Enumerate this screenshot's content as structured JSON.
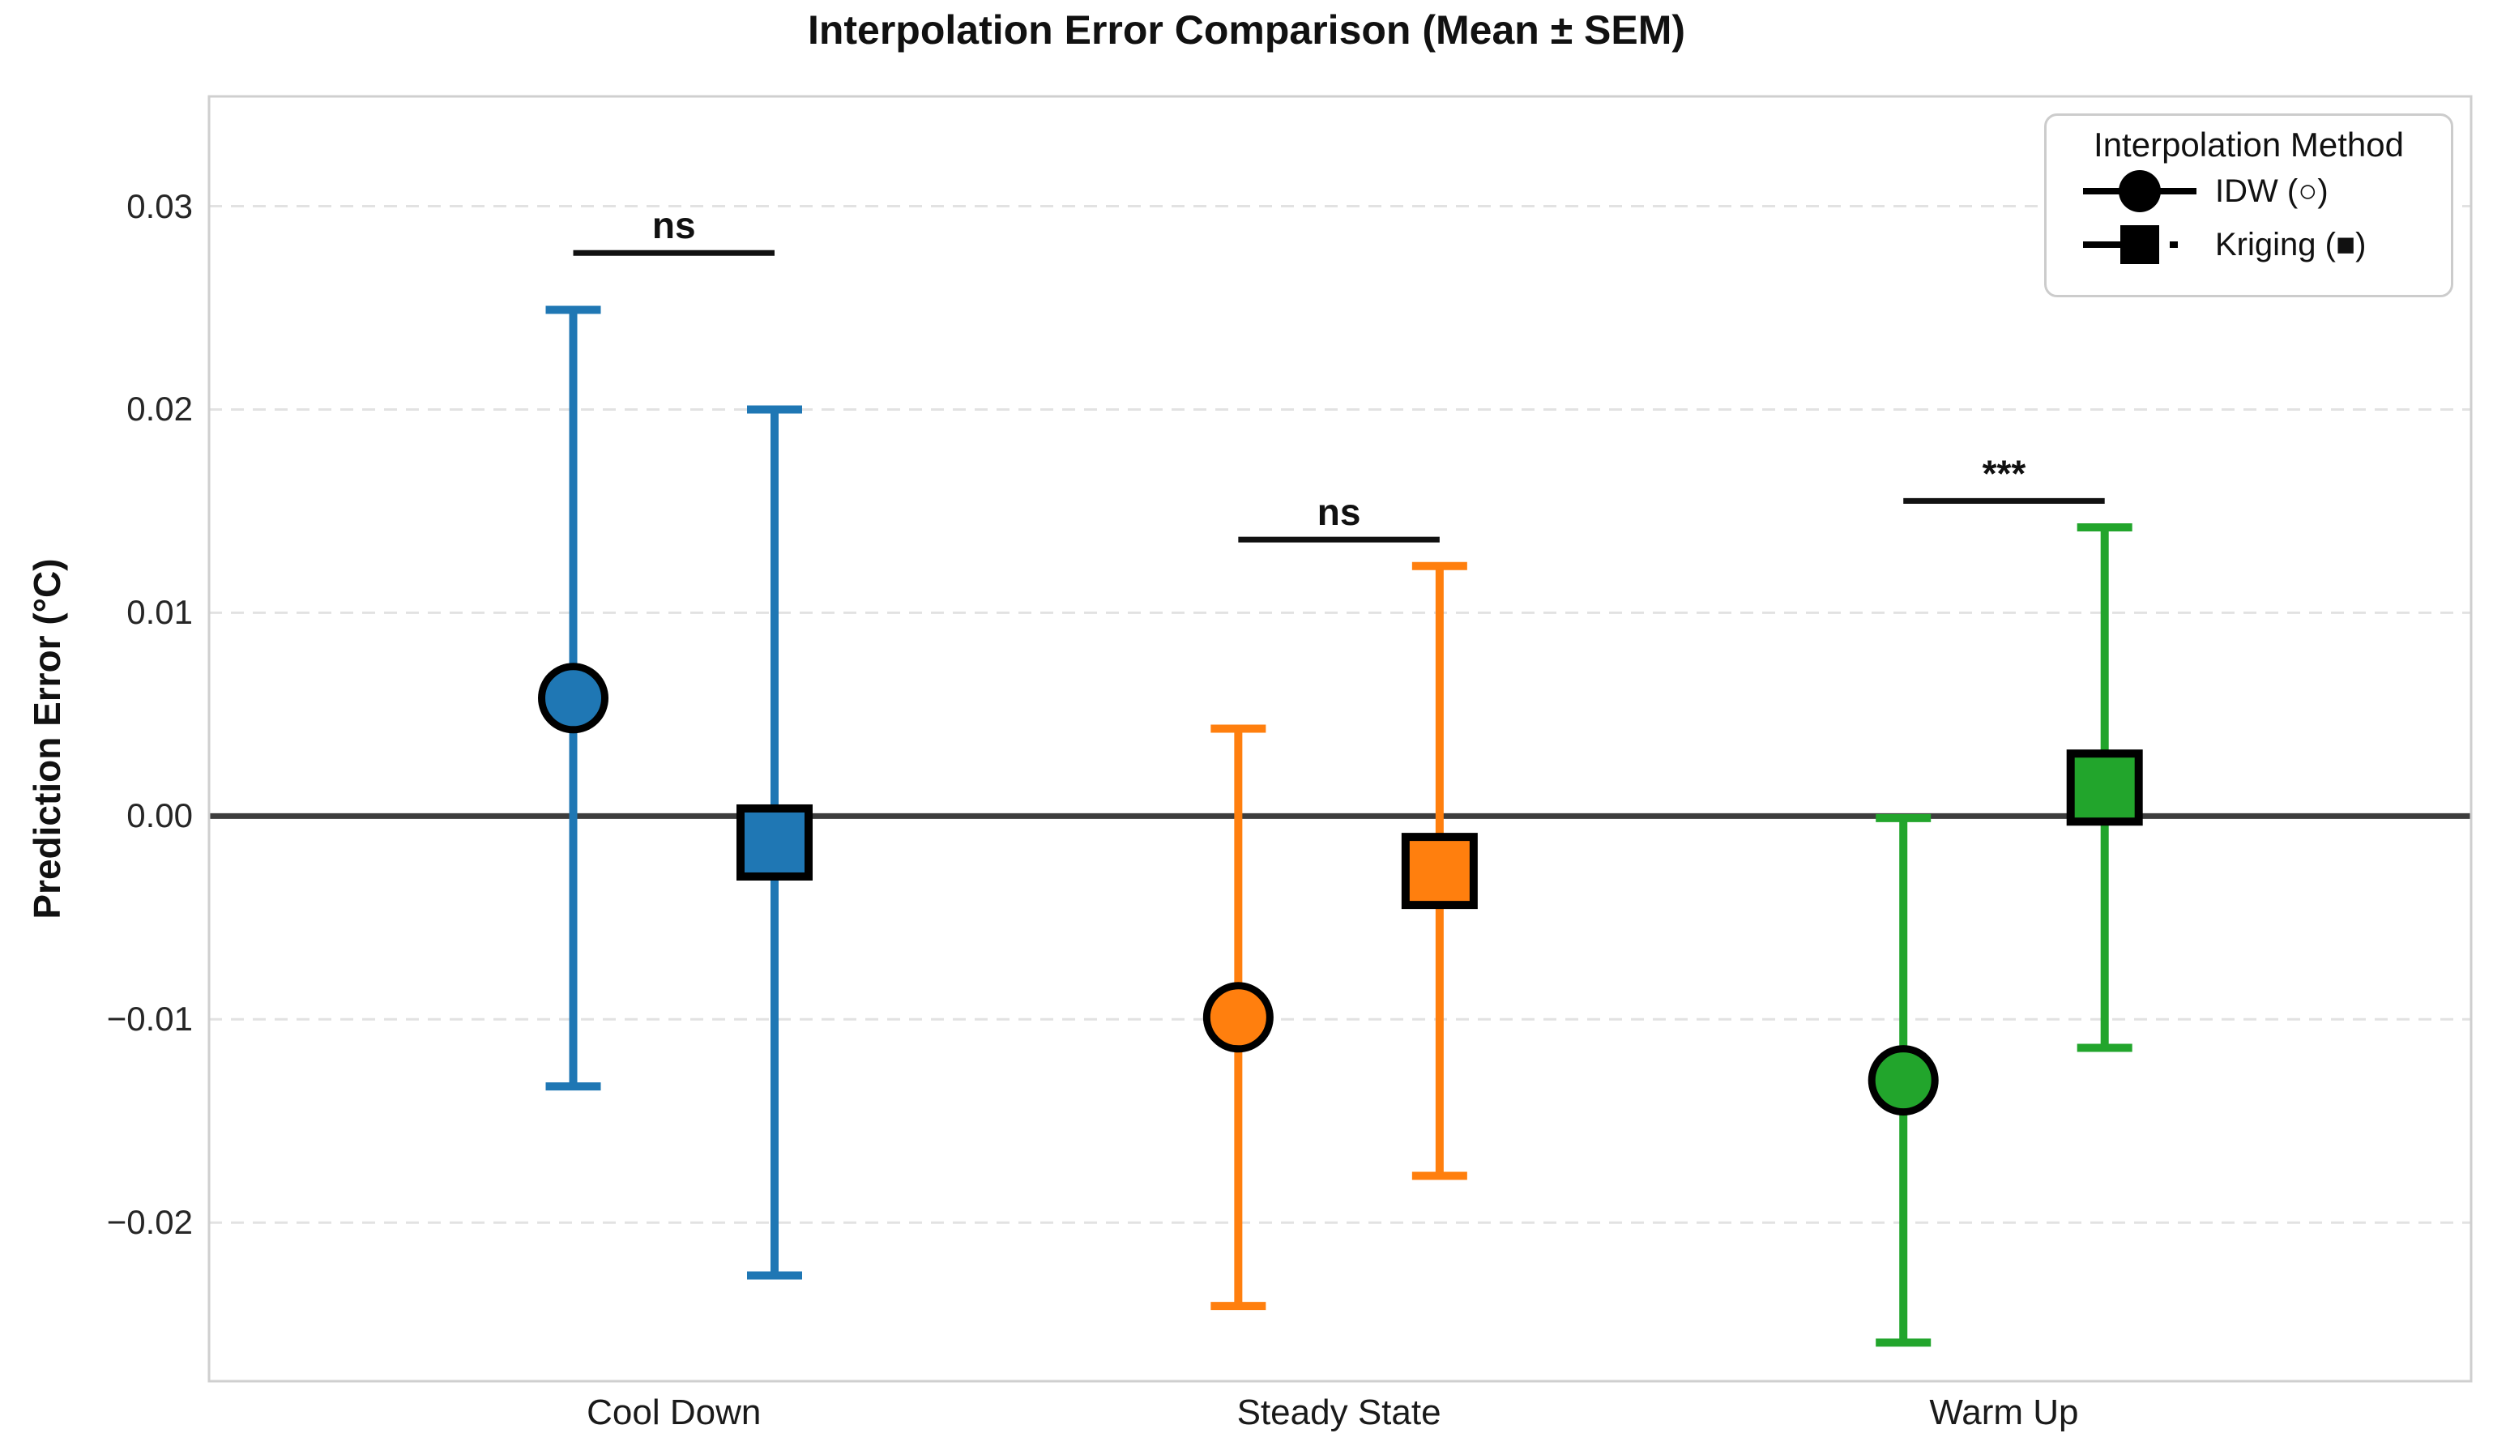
{
  "page": {
    "title": "Interpolation Error Comparison (Mean ± SEM)"
  },
  "chart_data": {
    "type": "errorbar",
    "title": "Interpolation Error Comparison (Mean ± SEM)",
    "xlabel": "",
    "ylabel": "Prediction Error (°C)",
    "categories": [
      "Cool Down",
      "Steady State",
      "Warm Up"
    ],
    "category_colors": [
      "#1f77b4",
      "#ff7f0e",
      "#22a52c"
    ],
    "ytick_labels": [
      "0.03",
      "0.02",
      "0.01",
      "0.00",
      "−0.01",
      "−0.02"
    ],
    "ytick_values": [
      0.03,
      0.02,
      0.01,
      0.0,
      -0.01,
      -0.02
    ],
    "ylim": [
      -0.0278,
      0.0354
    ],
    "grid": "horizontal-dashed",
    "zero_line_y": 0.0,
    "series": [
      {
        "name": "IDW (○)",
        "marker": "circle",
        "means": [
          0.0058,
          -0.0099,
          -0.013
        ],
        "sems": [
          0.0191,
          0.0142,
          0.0129
        ]
      },
      {
        "name": "Kriging (■)",
        "marker": "square",
        "means": [
          -0.0013,
          -0.0027,
          0.0014
        ],
        "sems": [
          0.0213,
          0.015,
          0.0128
        ]
      }
    ],
    "significance": [
      {
        "category": "Cool Down",
        "label": "ns",
        "line_y": 0.0277
      },
      {
        "category": "Steady State",
        "label": "ns",
        "line_y": 0.0136
      },
      {
        "category": "Warm Up",
        "label": "***",
        "line_y": 0.0155
      }
    ],
    "legend": {
      "title": "Interpolation Method",
      "position": "upper right",
      "entries": [
        {
          "label": "IDW (○)",
          "marker": "circle",
          "line": "solid"
        },
        {
          "label": "Kriging (■)",
          "marker": "square",
          "line": "dash-dot"
        }
      ]
    },
    "marker_edge_color": "#000000",
    "line_color_zero": "#3d3d3d",
    "grid_color": "#e2e2e2"
  }
}
